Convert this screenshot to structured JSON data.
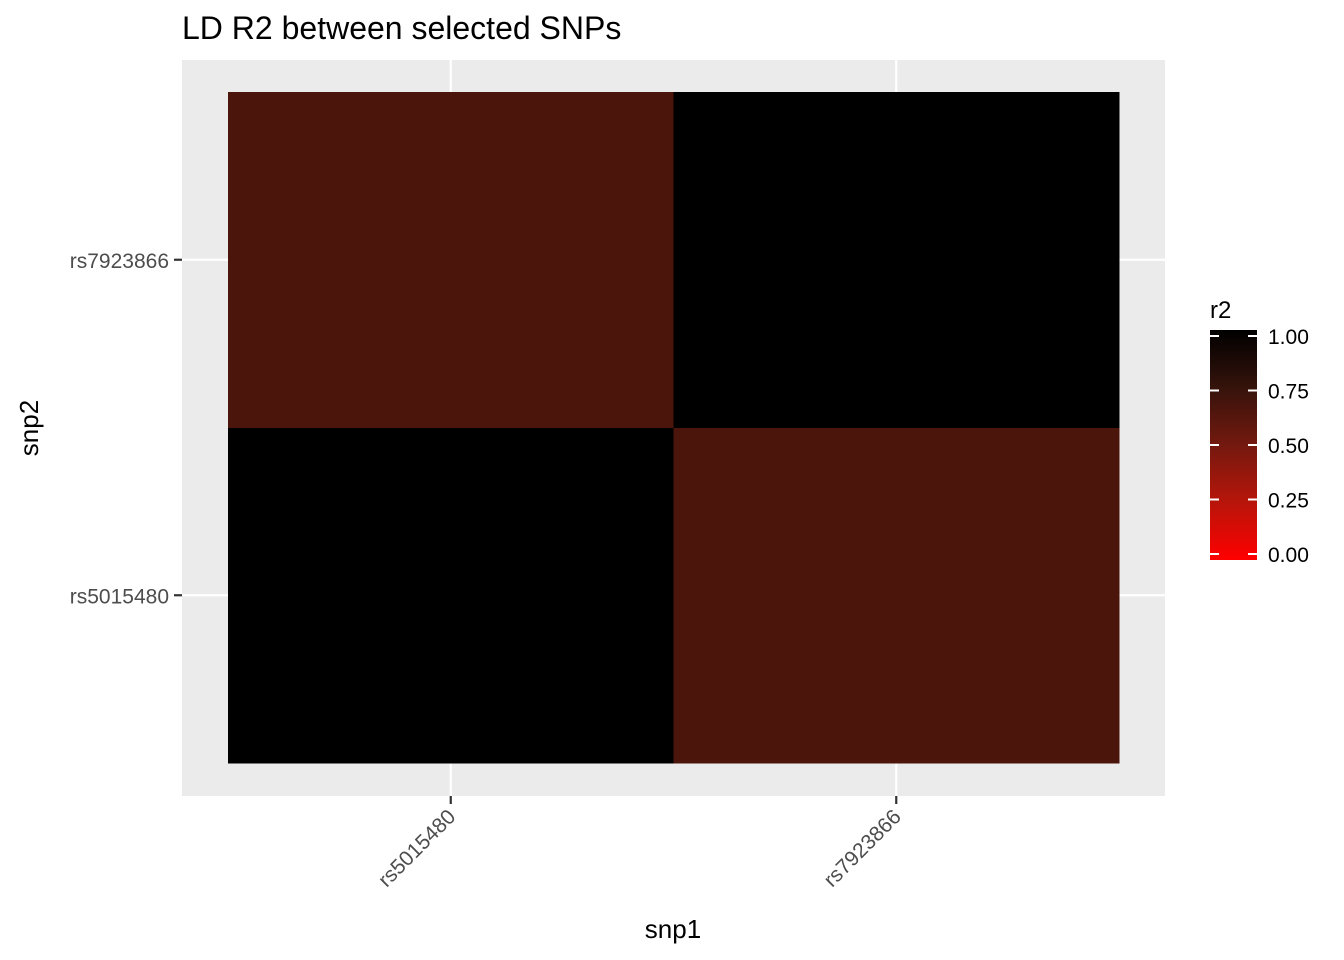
{
  "chart_data": {
    "type": "heatmap",
    "title": "LD R2 between selected SNPs",
    "xlabel": "snp1",
    "ylabel": "snp2",
    "x_categories": [
      "rs5015480",
      "rs7923866"
    ],
    "y_categories": [
      "rs5015480",
      "rs7923866"
    ],
    "cells": [
      {
        "x": "rs5015480",
        "y": "rs5015480",
        "value": 1.0
      },
      {
        "x": "rs7923866",
        "y": "rs5015480",
        "value": 0.66
      },
      {
        "x": "rs5015480",
        "y": "rs7923866",
        "value": 0.66
      },
      {
        "x": "rs7923866",
        "y": "rs7923866",
        "value": 1.0
      }
    ],
    "legend": {
      "title": "r2",
      "position": "right",
      "ticks": [
        "0.00",
        "0.25",
        "0.50",
        "0.75",
        "1.00"
      ],
      "range": [
        0,
        1
      ],
      "low_color": "#ff0000",
      "high_color": "#000000"
    },
    "panel_background": "#ebebeb",
    "grid": true
  }
}
